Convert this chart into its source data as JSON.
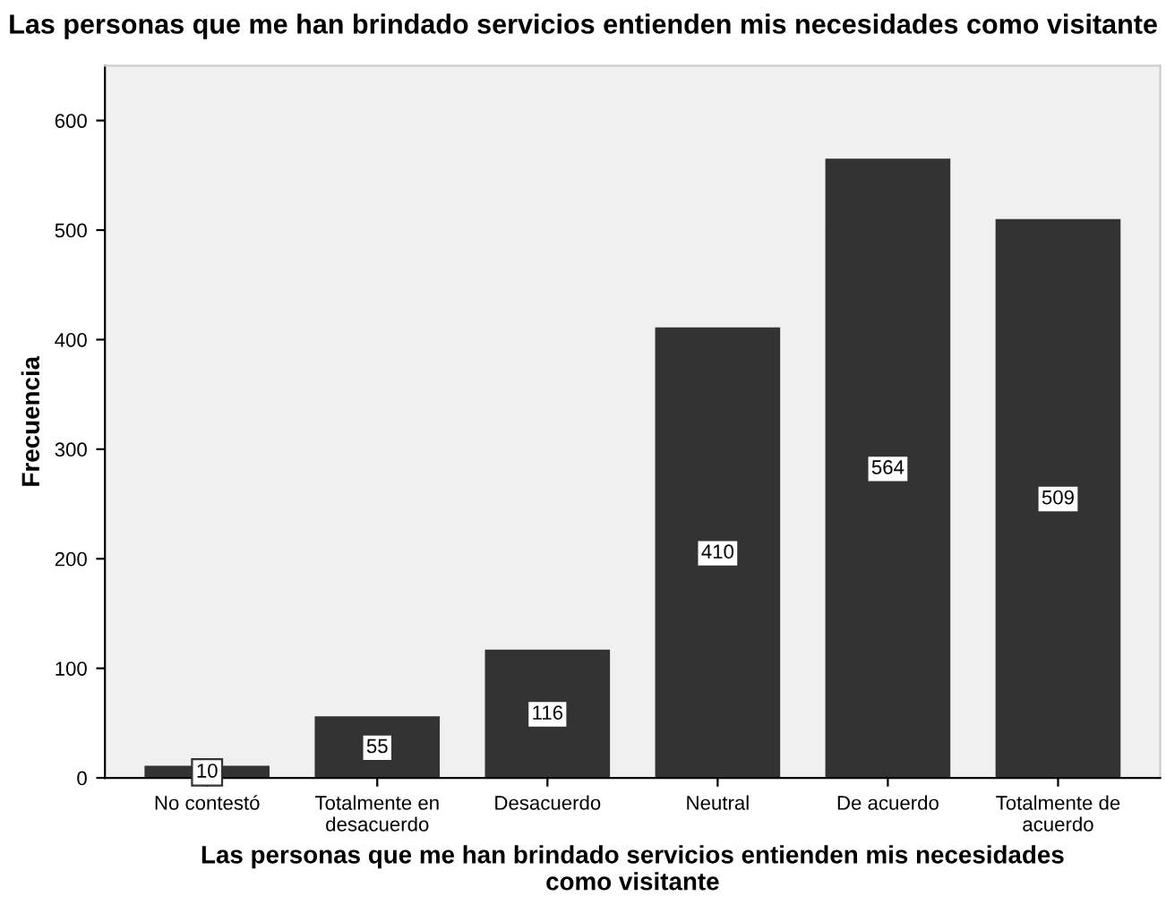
{
  "chart_data": {
    "type": "bar",
    "title": "Las personas que me han brindado servicios entienden mis necesidades como visitante",
    "xlabel": "Las personas que me han brindado servicios entienden mis necesidades\ncomo visitante",
    "ylabel": "Frecuencia",
    "categories": [
      "No contestó",
      "Totalmente en\ndesacuerdo",
      "Desacuerdo",
      "Neutral",
      "De acuerdo",
      "Totalmente de\nacuerdo"
    ],
    "values": [
      10,
      55,
      116,
      410,
      564,
      509
    ],
    "color": "#333333",
    "ylim": [
      0,
      650
    ],
    "yticks": [
      0,
      100,
      200,
      300,
      400,
      500,
      600
    ],
    "grid": false,
    "data_labels": true
  }
}
